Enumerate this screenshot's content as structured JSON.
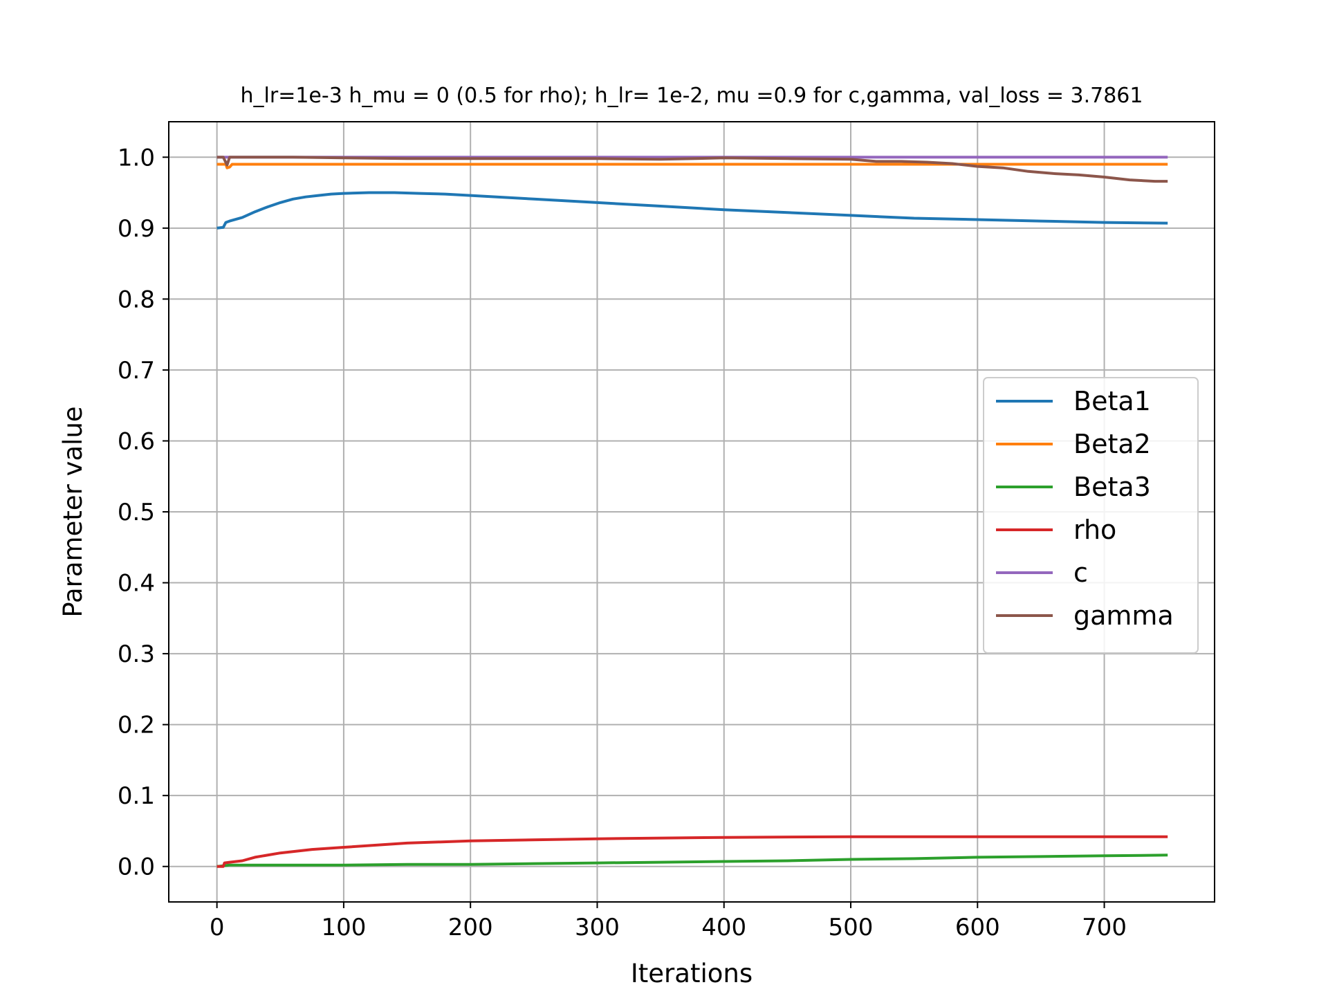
{
  "chart_data": {
    "type": "line",
    "title": "h_lr=1e-3 h_mu = 0 (0.5 for rho); h_lr= 1e-2, mu =0.9 for c,gamma, val_loss = 3.7861",
    "xlabel": "Iterations",
    "ylabel": "Parameter value",
    "xlim": [
      -38,
      787
    ],
    "ylim": [
      -0.05,
      1.05
    ],
    "xticks": [
      0,
      100,
      200,
      300,
      400,
      500,
      600,
      700
    ],
    "xtick_labels": [
      "0",
      "100",
      "200",
      "300",
      "400",
      "500",
      "600",
      "700"
    ],
    "yticks": [
      0.0,
      0.1,
      0.2,
      0.3,
      0.4,
      0.5,
      0.6,
      0.7,
      0.8,
      0.9,
      1.0
    ],
    "ytick_labels": [
      "0.0",
      "0.1",
      "0.2",
      "0.3",
      "0.4",
      "0.5",
      "0.6",
      "0.7",
      "0.8",
      "0.9",
      "1.0"
    ],
    "grid": true,
    "legend_position": "center-right",
    "series": [
      {
        "name": "Beta1",
        "color": "#1f77b4",
        "x": [
          0,
          5,
          7,
          10,
          20,
          30,
          40,
          50,
          60,
          70,
          80,
          90,
          100,
          120,
          140,
          160,
          180,
          200,
          250,
          300,
          350,
          400,
          450,
          500,
          550,
          600,
          650,
          700,
          750
        ],
        "y": [
          0.9,
          0.901,
          0.908,
          0.91,
          0.915,
          0.923,
          0.93,
          0.936,
          0.941,
          0.944,
          0.946,
          0.948,
          0.949,
          0.95,
          0.95,
          0.949,
          0.948,
          0.946,
          0.941,
          0.936,
          0.931,
          0.926,
          0.922,
          0.918,
          0.914,
          0.912,
          0.91,
          0.908,
          0.907
        ]
      },
      {
        "name": "Beta2",
        "color": "#ff7f0e",
        "x": [
          0,
          7,
          8,
          10,
          12,
          15,
          20,
          100,
          200,
          300,
          400,
          500,
          600,
          700,
          750
        ],
        "y": [
          0.99,
          0.99,
          0.985,
          0.986,
          0.99,
          0.99,
          0.99,
          0.99,
          0.99,
          0.99,
          0.99,
          0.99,
          0.99,
          0.99,
          0.99
        ]
      },
      {
        "name": "Beta3",
        "color": "#2ca02c",
        "x": [
          0,
          10,
          50,
          100,
          150,
          200,
          250,
          300,
          350,
          400,
          450,
          500,
          550,
          600,
          650,
          700,
          750
        ],
        "y": [
          0.0,
          0.002,
          0.002,
          0.002,
          0.003,
          0.003,
          0.004,
          0.005,
          0.006,
          0.007,
          0.008,
          0.01,
          0.011,
          0.013,
          0.014,
          0.015,
          0.016
        ]
      },
      {
        "name": "rho",
        "color": "#d62728",
        "x": [
          0,
          5,
          6,
          10,
          20,
          30,
          50,
          75,
          100,
          150,
          200,
          300,
          400,
          500,
          600,
          700,
          750
        ],
        "y": [
          0.0,
          0.0,
          0.005,
          0.006,
          0.008,
          0.013,
          0.019,
          0.024,
          0.027,
          0.033,
          0.036,
          0.039,
          0.041,
          0.042,
          0.042,
          0.042,
          0.042
        ]
      },
      {
        "name": "c",
        "color": "#9467bd",
        "x": [
          0,
          750
        ],
        "y": [
          1.0,
          1.0
        ]
      },
      {
        "name": "gamma",
        "color": "#8c564b",
        "x": [
          0,
          5,
          8,
          10,
          12,
          20,
          60,
          100,
          150,
          200,
          250,
          300,
          350,
          400,
          450,
          500,
          520,
          540,
          560,
          580,
          600,
          620,
          640,
          660,
          680,
          700,
          720,
          740,
          750
        ],
        "y": [
          1.0,
          1.0,
          0.989,
          1.0,
          1.0,
          1.0,
          1.0,
          0.999,
          0.998,
          0.998,
          0.998,
          0.998,
          0.997,
          0.999,
          0.998,
          0.997,
          0.994,
          0.994,
          0.993,
          0.991,
          0.987,
          0.985,
          0.98,
          0.977,
          0.975,
          0.972,
          0.968,
          0.966,
          0.966
        ]
      }
    ]
  }
}
